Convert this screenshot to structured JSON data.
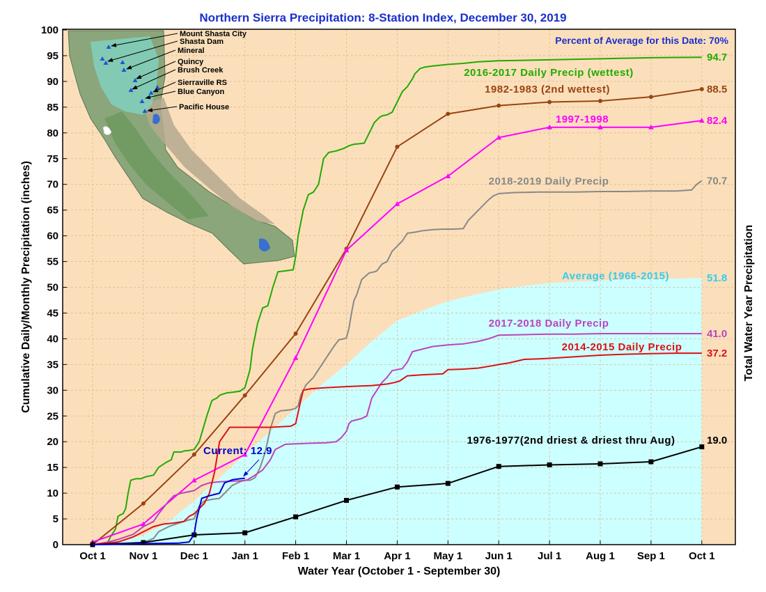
{
  "chart_data": {
    "type": "line",
    "title": "Northern Sierra Precipitation: 8-Station Index, December 30, 2019",
    "subtitle": "Percent of Average for this Date: 70%",
    "xlabel": "Water Year (October 1 - September 30)",
    "ylabel": "Cumulative Daily/Monthly Precipitation (inches)",
    "y2label": "Total Water Year Precipitation",
    "ylim": [
      0,
      100
    ],
    "yticks": [
      0,
      5,
      10,
      15,
      20,
      25,
      30,
      35,
      40,
      45,
      50,
      55,
      60,
      65,
      70,
      75,
      80,
      85,
      90,
      95,
      100
    ],
    "x_ticks": [
      "Oct 1",
      "Nov 1",
      "Dec 1",
      "Jan 1",
      "Feb 1",
      "Mar 1",
      "Apr 1",
      "May 1",
      "Jun 1",
      "Jul 1",
      "Aug 1",
      "Sep 1",
      "Oct 1"
    ],
    "x_unit": "month index from Oct 1 (0 = Oct 1, 12 = Oct 1 of following year)",
    "grid": true,
    "colors": {
      "plot_bg": "#fbdfbb",
      "average_fill": "#ccffff",
      "grid": "#d9b98e"
    },
    "average": {
      "name": "Average (1966-2015)",
      "end_label": "51.8",
      "color": "#33ccee",
      "x": [
        0,
        0.5,
        1,
        1.5,
        2,
        2.5,
        3,
        3.5,
        4,
        4.5,
        5,
        5.5,
        6,
        6.5,
        7,
        7.5,
        8,
        8.5,
        9,
        9.5,
        10,
        10.5,
        11,
        11.5,
        12
      ],
      "y": [
        0,
        0.6,
        1.8,
        4.5,
        8.5,
        13,
        17.5,
        22,
        26.5,
        31,
        35,
        39.5,
        43.5,
        45.5,
        47.3,
        48.5,
        49.6,
        50.3,
        50.8,
        51.1,
        51.3,
        51.5,
        51.6,
        51.7,
        51.8
      ]
    },
    "series": [
      {
        "name": "2016-2017 Daily Precip (wettest)",
        "end_label": "94.7",
        "color": "#22aa00",
        "x": [
          0,
          0.2,
          0.3,
          0.35,
          0.45,
          0.5,
          0.55,
          0.6,
          0.65,
          0.7,
          0.75,
          0.85,
          0.95,
          1.0,
          1.05,
          1.2,
          1.3,
          1.45,
          1.55,
          1.6,
          1.75,
          1.8,
          1.9,
          2.0,
          2.1,
          2.25,
          2.35,
          2.45,
          2.5,
          2.55,
          2.65,
          2.75,
          2.9,
          3.0,
          3.1,
          3.15,
          3.25,
          3.35,
          3.4,
          3.45,
          3.55,
          3.65,
          3.8,
          3.95,
          4.0,
          4.05,
          4.15,
          4.25,
          4.35,
          4.45,
          4.55,
          4.65,
          4.8,
          4.95,
          5.05,
          5.15,
          5.35,
          5.45,
          5.55,
          5.65,
          5.7,
          5.8,
          5.9,
          6.0,
          6.1,
          6.2,
          6.3,
          6.35,
          6.45,
          6.55,
          6.7,
          6.8,
          7.0,
          7.3,
          7.6,
          8.0,
          8.5,
          9.0,
          9.5,
          10.0,
          10.5,
          11.0,
          11.5,
          12.0
        ],
        "y": [
          0,
          0.2,
          0.5,
          1.5,
          3,
          5.5,
          5.8,
          6,
          7,
          10,
          12.5,
          12.8,
          12.8,
          13,
          13.2,
          13.5,
          15,
          16,
          16.5,
          18,
          18,
          18.2,
          18.3,
          18.5,
          20,
          25,
          28,
          28.5,
          29,
          29.2,
          29.5,
          29.6,
          29.8,
          30.5,
          34,
          38,
          43,
          46,
          46.2,
          46.4,
          50,
          53,
          53.2,
          53.4,
          56,
          60,
          65,
          68,
          68.5,
          70,
          75,
          76.2,
          76.5,
          77,
          77.5,
          77.8,
          78,
          80,
          82,
          83,
          83.3,
          83.5,
          84,
          86,
          88,
          89,
          90.5,
          91.5,
          92.5,
          92.8,
          93,
          93.1,
          93.3,
          93.5,
          93.8,
          94,
          94.1,
          94.2,
          94.3,
          94.4,
          94.5,
          94.6,
          94.65,
          94.7
        ]
      },
      {
        "name": "1982-1983 (2nd wettest)",
        "end_label": "88.5",
        "color": "#994411",
        "marker": "circle",
        "x": [
          0,
          1,
          2,
          3,
          4,
          5,
          6,
          7,
          8,
          9,
          10,
          11,
          12
        ],
        "y": [
          0,
          8,
          17.5,
          29,
          41,
          57.5,
          77.3,
          83.7,
          85.3,
          86.0,
          86.2,
          87.0,
          88.5
        ]
      },
      {
        "name": "1997-1998",
        "end_label": "82.4",
        "color": "#ff00ff",
        "marker": "triangle",
        "x": [
          0,
          1,
          2,
          3,
          4,
          5,
          6,
          7,
          8,
          9,
          10,
          11,
          12
        ],
        "y": [
          0.5,
          4,
          12.5,
          17.5,
          36.3,
          57.2,
          66.2,
          71.6,
          79.1,
          81.1,
          81.1,
          81.1,
          82.4
        ]
      },
      {
        "name": "2018-2019 Daily Precip",
        "end_label": "70.7",
        "color": "#888888",
        "x": [
          0,
          0.5,
          0.9,
          1.05,
          1.2,
          1.3,
          1.5,
          1.7,
          1.9,
          2.0,
          2.1,
          2.2,
          2.35,
          2.5,
          2.65,
          2.75,
          2.9,
          3.0,
          3.1,
          3.2,
          3.3,
          3.4,
          3.5,
          3.6,
          3.7,
          3.9,
          4.0,
          4.05,
          4.1,
          4.2,
          4.35,
          4.45,
          4.55,
          4.65,
          4.75,
          4.85,
          4.95,
          5.0,
          5.05,
          5.1,
          5.15,
          5.2,
          5.3,
          5.45,
          5.55,
          5.6,
          5.7,
          5.8,
          5.9,
          6.0,
          6.1,
          6.2,
          6.35,
          6.5,
          6.7,
          6.9,
          7.1,
          7.3,
          7.4,
          7.5,
          7.6,
          7.7,
          7.8,
          7.9,
          8.0,
          8.3,
          8.8,
          9.5,
          10.0,
          10.5,
          11.0,
          11.5,
          11.8,
          11.9,
          12.0
        ],
        "y": [
          0,
          0.1,
          0.3,
          0.6,
          1.2,
          2.5,
          3.5,
          4.2,
          4.8,
          5.0,
          7.5,
          8.5,
          8.8,
          9.0,
          10.5,
          11.5,
          12.2,
          12.5,
          12.5,
          13.0,
          15.0,
          18.0,
          22.5,
          25.5,
          26.0,
          26.2,
          26.5,
          27.0,
          29.0,
          31.0,
          32.5,
          34.0,
          35.5,
          37.0,
          38.5,
          39.8,
          40.0,
          40.2,
          42.0,
          45.0,
          47.5,
          48.5,
          51.5,
          52.8,
          53.0,
          53.2,
          54.5,
          55.0,
          57.0,
          58.0,
          59.0,
          60.5,
          60.7,
          61.0,
          61.2,
          61.3,
          61.3,
          61.4,
          63.0,
          64.0,
          65.0,
          66.0,
          67.0,
          67.8,
          68.2,
          68.4,
          68.5,
          68.5,
          68.6,
          68.6,
          68.7,
          68.7,
          68.9,
          70.0,
          70.7
        ]
      },
      {
        "name": "2017-2018 Daily Precip",
        "end_label": "41.0",
        "color": "#bb44bb",
        "x": [
          0,
          0.3,
          0.5,
          0.8,
          1.0,
          1.2,
          1.3,
          1.5,
          1.6,
          1.75,
          1.9,
          2.0,
          2.15,
          2.3,
          2.5,
          2.7,
          2.9,
          3.0,
          3.05,
          3.2,
          3.35,
          3.5,
          3.6,
          3.8,
          4.0,
          4.3,
          4.6,
          4.8,
          4.9,
          5.0,
          5.05,
          5.1,
          5.3,
          5.4,
          5.5,
          5.6,
          5.7,
          5.8,
          5.9,
          6.0,
          6.1,
          6.2,
          6.3,
          6.5,
          6.7,
          7.0,
          7.3,
          7.6,
          7.8,
          8.0,
          8.5,
          9.0,
          9.5,
          10.0,
          11.0,
          12.0
        ],
        "y": [
          0,
          0.5,
          1.0,
          2.0,
          3.5,
          4.5,
          6.0,
          8.5,
          9.5,
          10.0,
          10.3,
          10.5,
          11.5,
          12.0,
          12.2,
          12.3,
          12.4,
          12.5,
          12.6,
          13.5,
          14.5,
          16.5,
          18.5,
          19.5,
          19.6,
          19.7,
          19.8,
          20.0,
          20.8,
          22.0,
          23.5,
          24.0,
          24.5,
          25.0,
          28.5,
          30.0,
          31.5,
          32.5,
          33.8,
          34.0,
          34.2,
          35.5,
          37.5,
          38.0,
          38.5,
          38.8,
          39.0,
          39.5,
          40.0,
          40.7,
          40.8,
          40.9,
          40.9,
          41.0,
          41.0,
          41.0
        ]
      },
      {
        "name": "2014-2015 Daily Precip",
        "end_label": "37.2",
        "color": "#dd1111",
        "x": [
          0,
          0.5,
          0.8,
          1.0,
          1.2,
          1.4,
          1.6,
          1.8,
          1.9,
          2.0,
          2.1,
          2.2,
          2.3,
          2.4,
          2.5,
          2.7,
          3.0,
          3.5,
          3.9,
          4.0,
          4.1,
          4.15,
          4.3,
          4.6,
          5.0,
          5.5,
          5.8,
          5.95,
          6.05,
          6.2,
          6.5,
          6.9,
          7.0,
          7.3,
          7.6,
          7.9,
          8.0,
          8.2,
          8.5,
          8.8,
          9.0,
          9.5,
          10.0,
          10.5,
          11.0,
          11.5,
          12.0
        ],
        "y": [
          0,
          0.5,
          1.5,
          2.5,
          3.5,
          4.0,
          4.2,
          4.5,
          5.5,
          6.0,
          7.0,
          8.0,
          10.0,
          14.0,
          20.0,
          22.8,
          22.8,
          22.8,
          23.0,
          23.5,
          28.0,
          30.0,
          30.3,
          30.5,
          30.7,
          30.9,
          31.2,
          31.5,
          31.8,
          32.8,
          33.0,
          33.2,
          34.0,
          34.1,
          34.3,
          34.8,
          35.0,
          35.3,
          36.0,
          36.1,
          36.2,
          36.5,
          36.8,
          37.0,
          37.1,
          37.2,
          37.2
        ]
      },
      {
        "name": "1976-1977(2nd driest & driest thru Aug)",
        "end_label": "19.0",
        "color": "#000000",
        "marker": "square",
        "x": [
          0,
          1,
          2,
          3,
          4,
          5,
          6,
          7,
          8,
          9,
          10,
          11,
          12
        ],
        "y": [
          0,
          0.4,
          1.9,
          2.3,
          5.4,
          8.6,
          11.2,
          11.9,
          15.2,
          15.5,
          15.7,
          16.1,
          19.0
        ]
      },
      {
        "name": "Current: 12.9",
        "color": "#0000cc",
        "x": [
          0,
          1.0,
          1.7,
          1.9,
          2.0,
          2.05,
          2.15,
          2.3,
          2.5,
          2.6,
          2.75,
          2.9,
          3.0
        ],
        "y": [
          0,
          0.2,
          0.3,
          0.5,
          2.0,
          5.0,
          9.0,
          9.5,
          10.0,
          12.0,
          12.6,
          12.8,
          12.9
        ]
      }
    ],
    "stations": [
      "Mount Shasta City",
      "Shasta Dam",
      "Mineral",
      "Quincy",
      "Brush Creek",
      "Sierraville RS",
      "Blue Canyon",
      "Pacific House"
    ]
  }
}
